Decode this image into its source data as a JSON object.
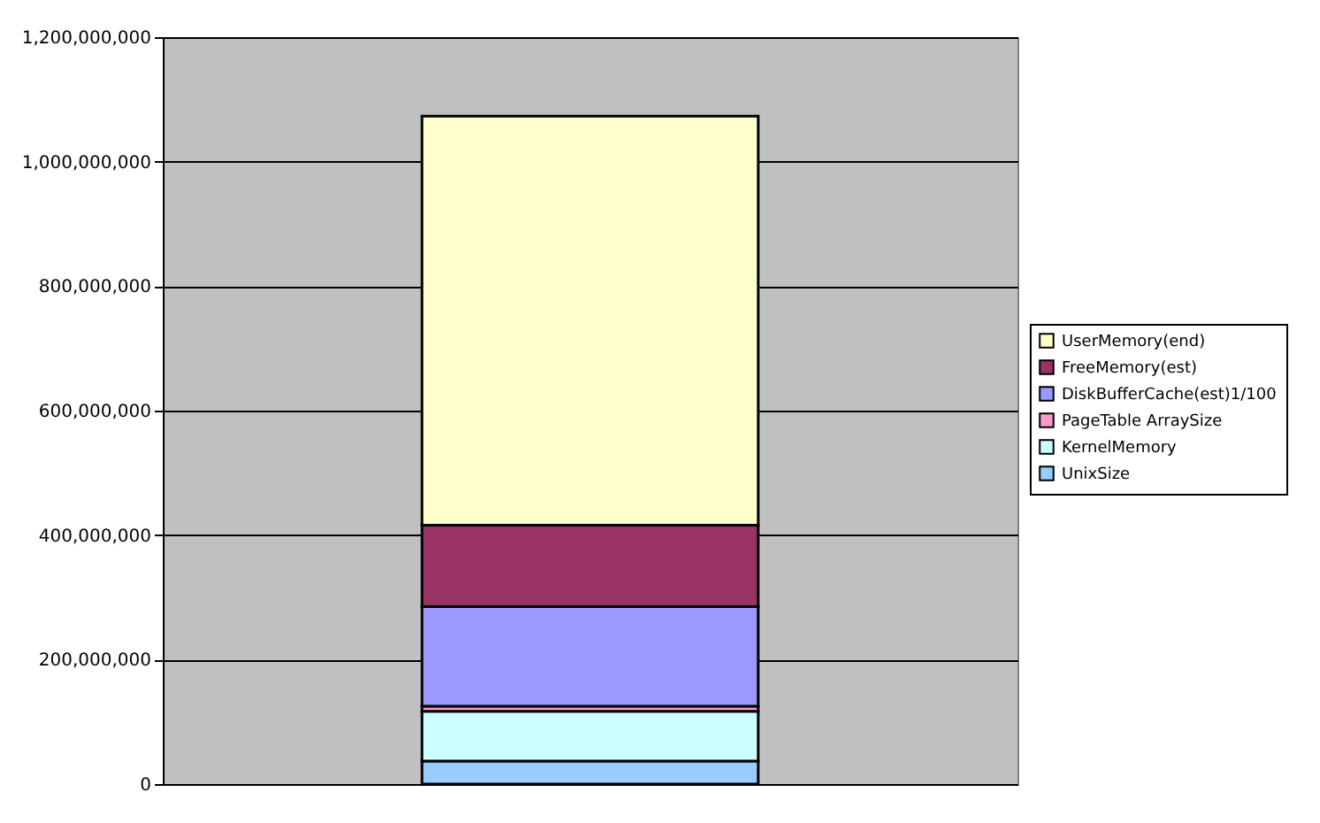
{
  "chart_data": {
    "type": "bar",
    "stacked": true,
    "categories": [
      null
    ],
    "series": [
      {
        "name": "UnixSize",
        "color": "#99ccff",
        "values": [
          37000000
        ]
      },
      {
        "name": "KernelMemory",
        "color": "#ccffff",
        "values": [
          80000000
        ]
      },
      {
        "name": "PageTable ArraySize",
        "color": "#ff99cc",
        "values": [
          8000000
        ]
      },
      {
        "name": "DiskBufferCache(est)1/100",
        "color": "#9999ff",
        "values": [
          160000000
        ]
      },
      {
        "name": "FreeMemory(est)",
        "color": "#993366",
        "values": [
          131000000
        ]
      },
      {
        "name": "UserMemory(end)",
        "color": "#ffffcc",
        "values": [
          657000000
        ]
      }
    ],
    "ylim": [
      0,
      1200000000
    ],
    "yticks": [
      0,
      {
        "value": 200000000,
        "label": "200,000,000"
      },
      {
        "value": 400000000,
        "label": "400,000,000"
      },
      {
        "value": 600000000,
        "label": "600,000,000"
      },
      {
        "value": 800000000,
        "label": "800,000,000"
      },
      {
        "value": 1000000000,
        "label": "1,000,000,000"
      },
      {
        "value": 1200000000,
        "label": "1,200,000,000"
      }
    ],
    "grid": "y",
    "legend": "right",
    "tick_labels": "y"
  }
}
